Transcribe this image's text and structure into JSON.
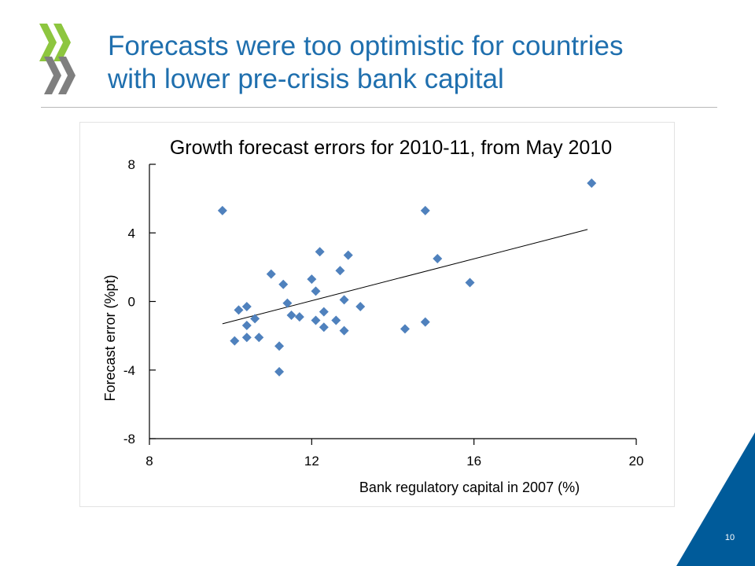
{
  "slide": {
    "title_line1": "Forecasts were too optimistic for countries",
    "title_line2": "with lower pre-crisis bank capital",
    "page_number": "10",
    "accent_color": "#1f6fae",
    "logo_colors": [
      "#8dc63f",
      "#7f7f7f"
    ],
    "corner_color": "#005b9a"
  },
  "chart_data": {
    "type": "scatter",
    "title": "Growth forecast errors for 2010-11, from May 2010",
    "xlabel": "Bank regulatory capital in 2007 (%)",
    "ylabel": "Forecast error (%pt)",
    "xlim": [
      8,
      20
    ],
    "ylim": [
      -8,
      8
    ],
    "xticks": [
      8,
      12,
      16,
      20
    ],
    "yticks": [
      8,
      4,
      0,
      -4,
      -8
    ],
    "marker": "diamond",
    "marker_color": "#4f81bd",
    "grid": false,
    "trendline": {
      "x": [
        9.8,
        18.8
      ],
      "y": [
        -1.3,
        4.2
      ]
    },
    "points": [
      {
        "x": 9.8,
        "y": 5.3
      },
      {
        "x": 10.1,
        "y": -2.3
      },
      {
        "x": 10.2,
        "y": -0.5
      },
      {
        "x": 10.4,
        "y": -0.3
      },
      {
        "x": 10.4,
        "y": -1.4
      },
      {
        "x": 10.4,
        "y": -2.1
      },
      {
        "x": 10.6,
        "y": -1.0
      },
      {
        "x": 10.7,
        "y": -2.1
      },
      {
        "x": 11.0,
        "y": 1.6
      },
      {
        "x": 11.2,
        "y": -2.6
      },
      {
        "x": 11.2,
        "y": -4.1
      },
      {
        "x": 11.3,
        "y": 1.0
      },
      {
        "x": 11.4,
        "y": -0.1
      },
      {
        "x": 11.5,
        "y": -0.8
      },
      {
        "x": 11.7,
        "y": -0.9
      },
      {
        "x": 12.0,
        "y": 1.3
      },
      {
        "x": 12.1,
        "y": 0.6
      },
      {
        "x": 12.1,
        "y": -1.1
      },
      {
        "x": 12.2,
        "y": 2.9
      },
      {
        "x": 12.3,
        "y": -0.6
      },
      {
        "x": 12.3,
        "y": -1.5
      },
      {
        "x": 12.6,
        "y": -1.1
      },
      {
        "x": 12.7,
        "y": 1.8
      },
      {
        "x": 12.8,
        "y": 0.1
      },
      {
        "x": 12.8,
        "y": -1.7
      },
      {
        "x": 12.9,
        "y": 2.7
      },
      {
        "x": 13.2,
        "y": -0.3
      },
      {
        "x": 14.3,
        "y": -1.6
      },
      {
        "x": 14.8,
        "y": 5.3
      },
      {
        "x": 14.8,
        "y": -1.2
      },
      {
        "x": 15.1,
        "y": 2.5
      },
      {
        "x": 15.9,
        "y": 1.1
      },
      {
        "x": 18.9,
        "y": 6.9
      }
    ]
  }
}
